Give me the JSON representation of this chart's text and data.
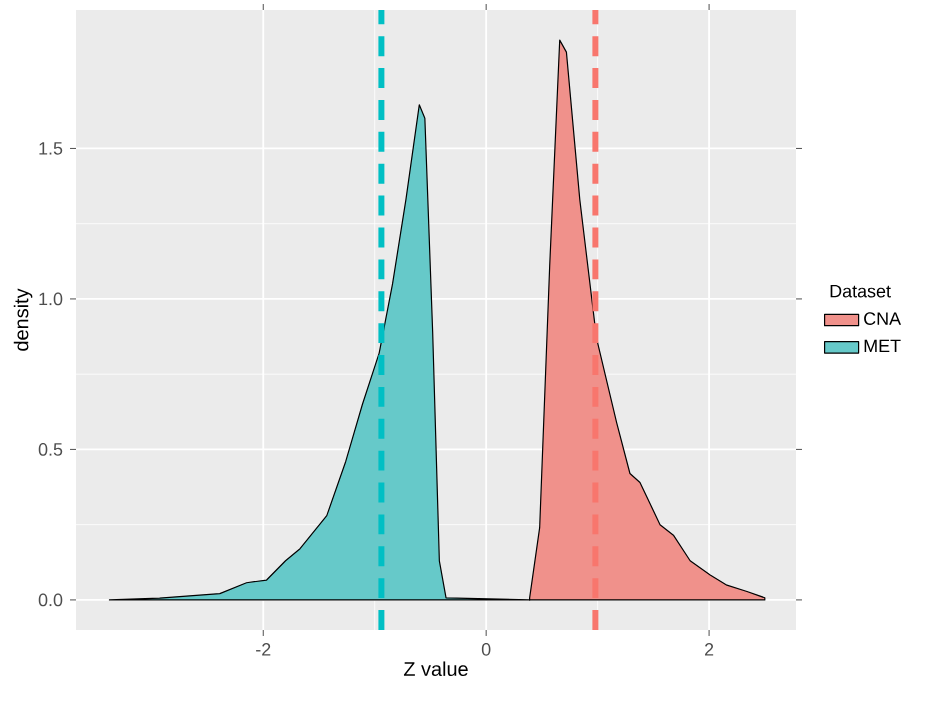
{
  "chart_data": {
    "type": "area",
    "xlabel": "Z value",
    "ylabel": "density",
    "legend_title": "Dataset",
    "legend": "right",
    "grid": true,
    "xlim": [
      -3.68,
      2.78
    ],
    "ylim": [
      -0.1,
      1.96
    ],
    "xticks": [
      -2,
      0,
      2
    ],
    "yticks": [
      {
        "value": 0,
        "label": "0.0"
      },
      {
        "value": 0.5,
        "label": "0.5"
      },
      {
        "value": 1,
        "label": "1.0"
      },
      {
        "value": 1.5,
        "label": "1.5"
      }
    ],
    "series": [
      {
        "name": "CNA",
        "color": "#f0918b",
        "x": [
          0.39,
          0.48,
          0.57,
          0.66,
          0.72,
          0.84,
          0.99,
          1.17,
          1.29,
          1.38,
          1.56,
          1.68,
          1.83,
          2.01,
          2.16,
          2.34,
          2.5
        ],
        "values": [
          0.007,
          0.24,
          1.11,
          1.86,
          1.82,
          1.33,
          0.87,
          0.59,
          0.42,
          0.39,
          0.25,
          0.215,
          0.13,
          0.083,
          0.049,
          0.028,
          0.007
        ]
      },
      {
        "name": "MET",
        "color": "#66c9c9",
        "x": [
          -3.38,
          -2.93,
          -2.39,
          -2.15,
          -1.97,
          -1.8,
          -1.67,
          -1.43,
          -1.26,
          -1.11,
          -0.96,
          -0.84,
          -0.72,
          -0.6,
          -0.55,
          -0.48,
          -0.42,
          -0.36,
          0.39
        ],
        "values": [
          0,
          0.006,
          0.021,
          0.057,
          0.066,
          0.13,
          0.17,
          0.28,
          0.46,
          0.65,
          0.82,
          1.05,
          1.33,
          1.645,
          1.6,
          0.89,
          0.13,
          0.007,
          0
        ]
      }
    ],
    "ref_lines": [
      {
        "axis": "x",
        "value": 0.98,
        "color": "#f8766d",
        "line_style": "dashed"
      },
      {
        "axis": "x",
        "value": -0.94,
        "color": "#00bfc4",
        "line_style": "dashed"
      }
    ]
  }
}
